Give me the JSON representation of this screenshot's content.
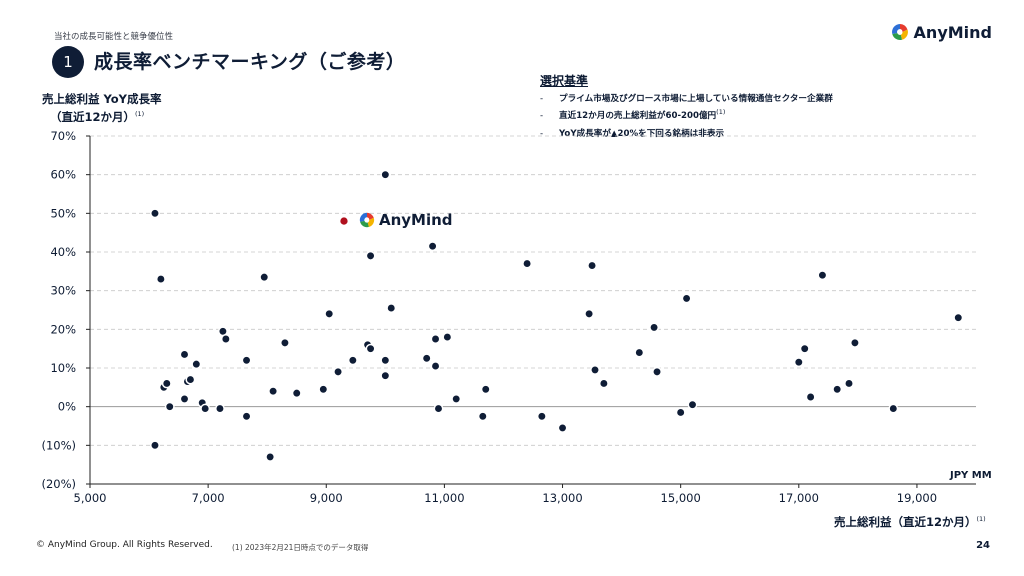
{
  "header": {
    "section": "当社の成長可能性と競争優位性",
    "badge": "1",
    "title": "成長率ベンチマーキング（ご参考）",
    "logo_text": "AnyMind"
  },
  "criteria": {
    "heading": "選択基準",
    "items": [
      "プライム市場及びグロース市場に上場している情報通信セクター企業群",
      "直近12か月の売上総利益が60-200億円",
      "YoY成長率が▲20%を下回る銘柄は非表示"
    ],
    "item_sup": [
      "",
      "(1)",
      ""
    ]
  },
  "axes": {
    "ylabel_1": "売上総利益 YoY成長率",
    "ylabel_2": "（直近12か月）",
    "ylabel_sup": "(1)",
    "xlabel": "売上総利益（直近12か月）",
    "xlabel_sup": "(1)",
    "unit": "JPY MM"
  },
  "footer": {
    "copyright": "© AnyMind Group. All Rights Reserved.",
    "footnote": "(1) 2023年2月21日時点でのデータ取得",
    "page": "24"
  },
  "colors": {
    "navy": "#0f1d36",
    "highlight": "#b0101e",
    "grid": "#c8c8c8"
  },
  "chart_data": {
    "type": "scatter",
    "xlim": [
      5000,
      20000
    ],
    "ylim": [
      -20,
      70
    ],
    "x_ticks": [
      5000,
      7000,
      9000,
      11000,
      13000,
      15000,
      17000,
      19000
    ],
    "x_tick_labels": [
      "5,000",
      "7,000",
      "9,000",
      "11,000",
      "13,000",
      "15,000",
      "17,000",
      "19,000"
    ],
    "y_ticks": [
      -20,
      -10,
      0,
      10,
      20,
      30,
      40,
      50,
      60,
      70
    ],
    "y_tick_labels": [
      "(20%)",
      "(10%)",
      "0%",
      "10%",
      "20%",
      "30%",
      "40%",
      "50%",
      "60%",
      "70%"
    ],
    "grid": "horizontal dashed",
    "highlight": {
      "label": "AnyMind",
      "x": 9300,
      "y": 48
    },
    "points": [
      [
        6100,
        50
      ],
      [
        6200,
        33
      ],
      [
        6250,
        5
      ],
      [
        6300,
        6
      ],
      [
        6350,
        0
      ],
      [
        6100,
        -10
      ],
      [
        6600,
        13.5
      ],
      [
        6650,
        6.5
      ],
      [
        6700,
        7
      ],
      [
        6600,
        2
      ],
      [
        6800,
        11
      ],
      [
        6900,
        1
      ],
      [
        6950,
        -0.5
      ],
      [
        7250,
        19.5
      ],
      [
        7300,
        17.5
      ],
      [
        7200,
        -0.5
      ],
      [
        7650,
        12
      ],
      [
        7650,
        -2.5
      ],
      [
        7950,
        33.5
      ],
      [
        8050,
        -13
      ],
      [
        8100,
        4
      ],
      [
        8300,
        16.5
      ],
      [
        8500,
        3.5
      ],
      [
        8950,
        4.5
      ],
      [
        9050,
        24
      ],
      [
        9200,
        9
      ],
      [
        9450,
        12
      ],
      [
        9700,
        16
      ],
      [
        9750,
        15
      ],
      [
        9750,
        39
      ],
      [
        10000,
        60
      ],
      [
        10000,
        12
      ],
      [
        10000,
        8
      ],
      [
        10100,
        25.5
      ],
      [
        10700,
        12.5
      ],
      [
        10800,
        41.5
      ],
      [
        10850,
        17.5
      ],
      [
        10850,
        10.5
      ],
      [
        10900,
        -0.5
      ],
      [
        11050,
        18
      ],
      [
        11200,
        2
      ],
      [
        11650,
        -2.5
      ],
      [
        11700,
        4.5
      ],
      [
        12400,
        37
      ],
      [
        12650,
        -2.5
      ],
      [
        13000,
        -5.5
      ],
      [
        13450,
        24
      ],
      [
        13500,
        36.5
      ],
      [
        13550,
        9.5
      ],
      [
        13700,
        6
      ],
      [
        14300,
        14
      ],
      [
        14550,
        20.5
      ],
      [
        14600,
        9
      ],
      [
        15000,
        -1.5
      ],
      [
        15100,
        28
      ],
      [
        15200,
        0.5
      ],
      [
        17000,
        11.5
      ],
      [
        17100,
        15
      ],
      [
        17200,
        2.5
      ],
      [
        17400,
        34
      ],
      [
        17650,
        4.5
      ],
      [
        17850,
        6
      ],
      [
        17950,
        16.5
      ],
      [
        18600,
        -0.5
      ],
      [
        19700,
        23
      ]
    ]
  }
}
